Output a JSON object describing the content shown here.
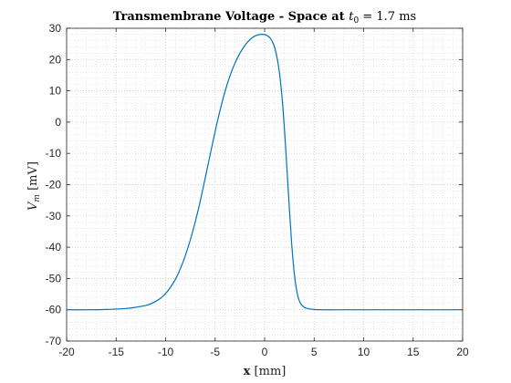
{
  "chart_data": {
    "type": "line",
    "title_main": "Transmembrane Voltage - Space at ",
    "title_var": "t",
    "title_sub": "0",
    "title_rest": " = 1.7 ms",
    "xlabel_main": "x",
    "xlabel_unit": " [mm]",
    "ylabel_var": "V",
    "ylabel_sub": "m",
    "ylabel_unit": " [mV]",
    "xlim": [
      -20,
      20
    ],
    "ylim": [
      -70,
      30
    ],
    "xticks": [
      -20,
      -15,
      -10,
      -5,
      0,
      5,
      10,
      15,
      20
    ],
    "yticks": [
      -70,
      -60,
      -50,
      -40,
      -30,
      -20,
      -10,
      0,
      10,
      20,
      30
    ],
    "xtick_labels": [
      "-20",
      "-15",
      "-10",
      "-5",
      "0",
      "5",
      "10",
      "15",
      "20"
    ],
    "ytick_labels": [
      "-70",
      "-60",
      "-50",
      "-40",
      "-30",
      "-20",
      "-10",
      "0",
      "10",
      "20",
      "30"
    ],
    "grid": true,
    "minor_grid": true,
    "color": "#0072BD",
    "series": [
      {
        "x": [
          -20,
          -18,
          -16,
          -14,
          -13,
          -12,
          -11.5,
          -11,
          -10.5,
          -10,
          -9.5,
          -9,
          -8.5,
          -8,
          -7.5,
          -7,
          -6.5,
          -6,
          -5.5,
          -5,
          -4.5,
          -4,
          -3.5,
          -3,
          -2.5,
          -2,
          -1.5,
          -1,
          -0.5,
          0,
          0.3,
          0.6,
          0.9,
          1.2,
          1.5,
          1.8,
          2.1,
          2.4,
          2.7,
          3.0,
          3.3,
          3.6,
          4.0,
          4.5,
          5,
          6,
          7,
          8,
          10,
          12,
          15,
          20
        ],
        "y": [
          -60,
          -60,
          -59.9,
          -59.6,
          -59.2,
          -58.6,
          -58.1,
          -57.3,
          -56.3,
          -54.8,
          -52.8,
          -50.2,
          -46.8,
          -42.6,
          -37.6,
          -31.8,
          -25.2,
          -17.9,
          -10.4,
          -3.0,
          3.8,
          9.8,
          14.8,
          18.8,
          22.0,
          24.5,
          26.3,
          27.5,
          28.0,
          28.0,
          27.6,
          26.7,
          24.9,
          21.5,
          15.7,
          6.5,
          -7.0,
          -22.5,
          -37.5,
          -48.5,
          -54.8,
          -57.8,
          -59.2,
          -59.7,
          -59.9,
          -60,
          -60,
          -60,
          -60,
          -60,
          -60,
          -60
        ]
      }
    ]
  }
}
